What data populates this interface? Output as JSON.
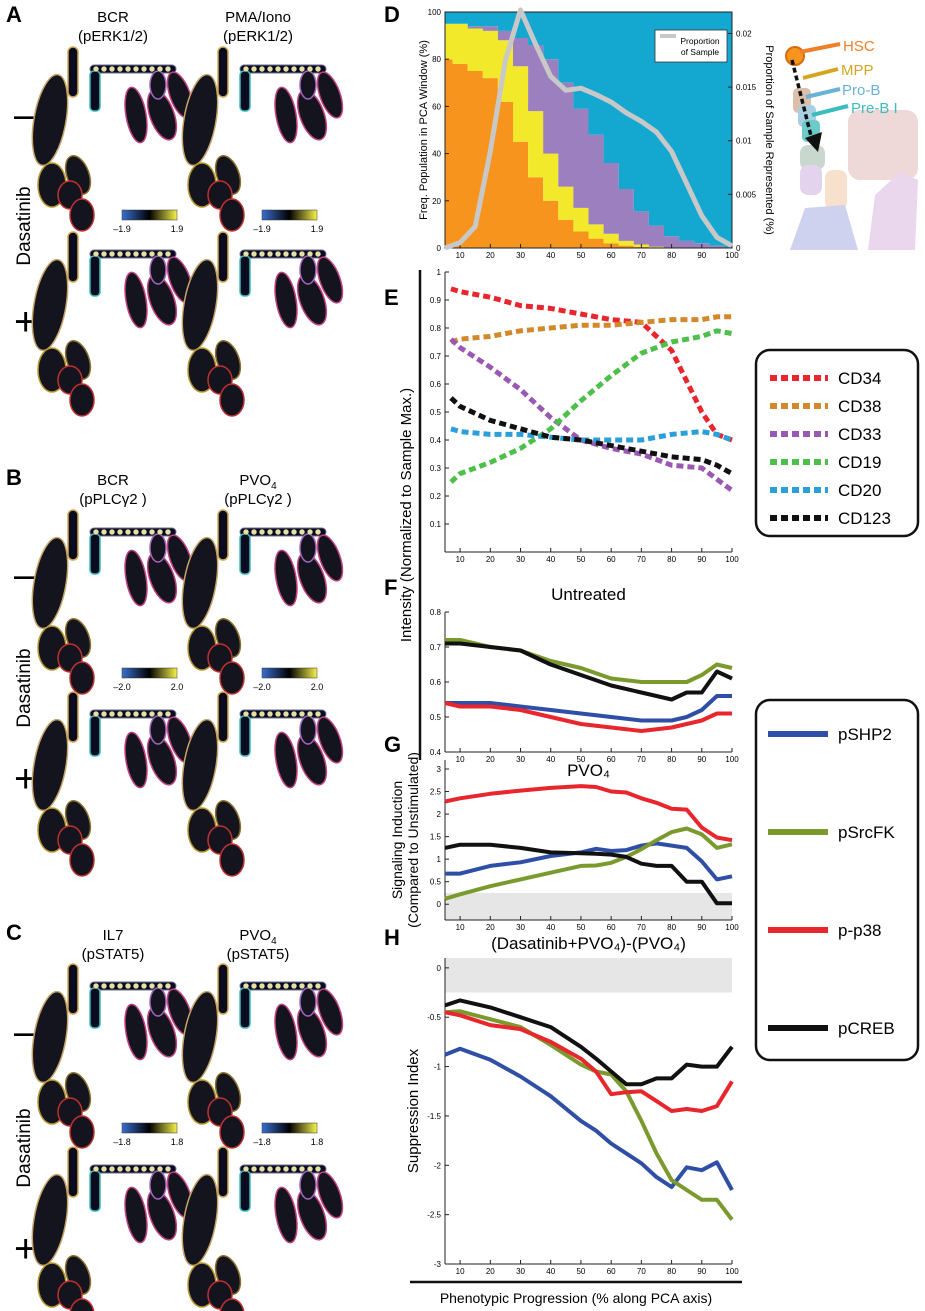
{
  "panel_letters": [
    "A",
    "B",
    "C",
    "D",
    "E",
    "F",
    "G",
    "H"
  ],
  "treatment_label": "Dasatinib",
  "treatment_signs": {
    "minus": "–",
    "plus": "+"
  },
  "panel_A": {
    "columns": [
      {
        "line1": "BCR",
        "line2": "(pERK1/2)"
      },
      {
        "line1": "PMA/Iono",
        "line2": "(pERK1/2)"
      }
    ],
    "scale": {
      "min": "–1.9",
      "max": "1.9"
    }
  },
  "panel_B": {
    "columns": [
      {
        "line1": "BCR",
        "line2": "(pPLCγ2 )"
      },
      {
        "line1": "PVO",
        "sub": "4",
        "line2": "(pPLCγ2 )"
      }
    ],
    "scale": {
      "min": "–2.0",
      "max": "2.0"
    }
  },
  "panel_C": {
    "columns": [
      {
        "line1": "IL7",
        "line2": "(pSTAT5)"
      },
      {
        "line1": "PVO",
        "sub": "4",
        "line2": "(pSTAT5)"
      }
    ],
    "scale": {
      "min": "–1.8",
      "max": "1.8"
    }
  },
  "population_key": {
    "items": [
      {
        "label": "HSC",
        "color": "#f07f2a"
      },
      {
        "label": "MPP",
        "color": "#d4a520"
      },
      {
        "label": "Pro-B",
        "color": "#6ab2d6"
      },
      {
        "label": "Pre-B I",
        "color": "#3cbcbc"
      }
    ]
  },
  "legend_markers": {
    "items": [
      {
        "label": "CD34",
        "color": "#e8262d"
      },
      {
        "label": "CD38",
        "color": "#d2892b"
      },
      {
        "label": "CD33",
        "color": "#9b58b2"
      },
      {
        "label": "CD19",
        "color": "#4fbf4c"
      },
      {
        "label": "CD20",
        "color": "#2b9fd9"
      },
      {
        "label": "CD123",
        "color": "#111111"
      }
    ]
  },
  "legend_signaling": {
    "items": [
      {
        "label": "pSHP2",
        "color": "#2f4fa6"
      },
      {
        "label": "pSrcFK",
        "color": "#7b9a2e"
      },
      {
        "label": "p-p38",
        "color": "#e8262d"
      },
      {
        "label": "pCREB",
        "color": "#111111"
      }
    ]
  },
  "shared_ylabel_EF": "Intensity (Normalized to Sample Max.)",
  "shared_xlabel": "Phenotypic Progression (% along PCA axis)",
  "chart_data": [
    {
      "id": "D",
      "type": "area",
      "ylabel": "Freq. Population in PCA Window (%)",
      "y2label": "Proportion of Sample Represented (%)",
      "legend_text": [
        "Proportion",
        "of Sample"
      ],
      "legend_placement": "top-right",
      "x": [
        5,
        10,
        15,
        20,
        25,
        30,
        35,
        40,
        45,
        50,
        55,
        60,
        65,
        70,
        75,
        80,
        85,
        90,
        95,
        100
      ],
      "xticks": [
        10,
        20,
        30,
        40,
        50,
        60,
        70,
        80,
        90,
        100
      ],
      "yticks": [
        0,
        20,
        40,
        60,
        80,
        100
      ],
      "y2ticks": [
        "0",
        "0.005",
        "0.01",
        "0.015",
        "0.02"
      ],
      "xlim": [
        5,
        100
      ],
      "ylim": [
        0,
        100
      ],
      "y2lim": [
        0,
        0.022
      ],
      "stacked_series": [
        {
          "color": "#f7941d",
          "values": [
            80,
            78,
            75,
            72,
            62,
            45,
            30,
            20,
            12,
            7,
            4,
            2,
            1,
            0.5,
            0,
            0,
            0,
            0,
            0,
            0
          ]
        },
        {
          "color": "#f2e92a",
          "values": [
            15,
            17,
            18,
            20,
            26,
            32,
            28,
            20,
            14,
            10,
            6,
            4,
            2,
            1,
            0.5,
            0,
            0,
            0,
            0,
            0
          ]
        },
        {
          "color": "#9b7fbf",
          "values": [
            0,
            0,
            1,
            2,
            4,
            12,
            28,
            40,
            44,
            42,
            38,
            30,
            22,
            14,
            9,
            5,
            3,
            2,
            1,
            0
          ]
        },
        {
          "color": "#14a7cf",
          "values": [
            5,
            5,
            6,
            6,
            8,
            11,
            14,
            20,
            30,
            41,
            52,
            64,
            75,
            84.5,
            90.5,
            95,
            97,
            98,
            99,
            100
          ]
        }
      ],
      "line": {
        "color": "#c8c8c8",
        "values": [
          0,
          0.0005,
          0.002,
          0.009,
          0.0175,
          0.0222,
          0.019,
          0.016,
          0.0147,
          0.0149,
          0.0143,
          0.0136,
          0.0126,
          0.0118,
          0.0108,
          0.009,
          0.006,
          0.003,
          0.001,
          0.0002
        ]
      }
    },
    {
      "id": "E",
      "type": "line",
      "dashed": true,
      "x": [
        7,
        10,
        20,
        30,
        40,
        50,
        60,
        70,
        80,
        90,
        95,
        100
      ],
      "xticks": [
        10,
        20,
        30,
        40,
        50,
        60,
        70,
        80,
        90,
        100
      ],
      "yticks": [
        0.1,
        0.2,
        0.3,
        0.4,
        0.5,
        0.6,
        0.7,
        0.8,
        0.9,
        1
      ],
      "xlim": [
        5,
        100
      ],
      "ylim": [
        0,
        1
      ],
      "series": [
        {
          "name": "CD34",
          "color": "#e8262d",
          "values": [
            0.94,
            0.93,
            0.91,
            0.88,
            0.87,
            0.85,
            0.83,
            0.82,
            0.72,
            0.5,
            0.42,
            0.4
          ]
        },
        {
          "name": "CD38",
          "color": "#d2892b",
          "values": [
            0.75,
            0.76,
            0.77,
            0.79,
            0.8,
            0.81,
            0.81,
            0.82,
            0.83,
            0.83,
            0.84,
            0.84
          ]
        },
        {
          "name": "CD33",
          "color": "#9b58b2",
          "values": [
            0.76,
            0.73,
            0.66,
            0.58,
            0.48,
            0.4,
            0.37,
            0.35,
            0.31,
            0.3,
            0.26,
            0.22
          ]
        },
        {
          "name": "CD19",
          "color": "#4fbf4c",
          "values": [
            0.25,
            0.28,
            0.32,
            0.37,
            0.44,
            0.54,
            0.63,
            0.71,
            0.75,
            0.77,
            0.79,
            0.78
          ]
        },
        {
          "name": "CD20",
          "color": "#2b9fd9",
          "values": [
            0.44,
            0.43,
            0.42,
            0.42,
            0.41,
            0.4,
            0.4,
            0.4,
            0.42,
            0.43,
            0.42,
            0.4
          ]
        },
        {
          "name": "CD123",
          "color": "#111111",
          "values": [
            0.55,
            0.52,
            0.47,
            0.44,
            0.41,
            0.4,
            0.38,
            0.36,
            0.34,
            0.33,
            0.31,
            0.28
          ]
        }
      ]
    },
    {
      "id": "F",
      "type": "line",
      "title": "Untreated",
      "x": [
        5,
        10,
        20,
        30,
        40,
        50,
        60,
        70,
        80,
        85,
        90,
        95,
        100
      ],
      "xticks": [
        10,
        20,
        30,
        40,
        50,
        60,
        70,
        80,
        90,
        100
      ],
      "yticks": [
        0.4,
        0.5,
        0.6,
        0.7,
        0.8
      ],
      "xlim": [
        5,
        100
      ],
      "ylim": [
        0.4,
        0.8
      ],
      "series": [
        {
          "name": "pSHP2",
          "color": "#2f4fa6",
          "values": [
            0.54,
            0.54,
            0.54,
            0.53,
            0.52,
            0.51,
            0.5,
            0.49,
            0.49,
            0.5,
            0.52,
            0.56,
            0.56
          ]
        },
        {
          "name": "pSrcFK",
          "color": "#7b9a2e",
          "values": [
            0.72,
            0.72,
            0.7,
            0.69,
            0.66,
            0.64,
            0.61,
            0.6,
            0.6,
            0.6,
            0.62,
            0.65,
            0.64
          ]
        },
        {
          "name": "p-p38",
          "color": "#e8262d",
          "values": [
            0.54,
            0.53,
            0.53,
            0.52,
            0.5,
            0.48,
            0.47,
            0.46,
            0.47,
            0.48,
            0.49,
            0.51,
            0.51
          ]
        },
        {
          "name": "pCREB",
          "color": "#111111",
          "values": [
            0.71,
            0.71,
            0.7,
            0.69,
            0.65,
            0.62,
            0.59,
            0.57,
            0.55,
            0.57,
            0.57,
            0.63,
            0.61
          ]
        }
      ]
    },
    {
      "id": "G",
      "type": "line",
      "title": "PVO₄",
      "ylabel_lines": [
        "Signaling Induction",
        "(Compared to Unstimulated)"
      ],
      "x": [
        5,
        10,
        20,
        30,
        40,
        50,
        55,
        60,
        65,
        70,
        75,
        80,
        85,
        90,
        95,
        100
      ],
      "xticks": [
        10,
        20,
        30,
        40,
        50,
        60,
        70,
        80,
        90,
        100
      ],
      "yticks": [
        0,
        0.5,
        1,
        1.5,
        2,
        2.5,
        3
      ],
      "xlim": [
        5,
        100
      ],
      "ylim": [
        -0.35,
        3.2
      ],
      "shaded_band": [
        -0.35,
        0.25
      ],
      "series": [
        {
          "name": "pSHP2",
          "color": "#2f4fa6",
          "values": [
            0.68,
            0.68,
            0.85,
            0.93,
            1.07,
            1.15,
            1.23,
            1.18,
            1.2,
            1.3,
            1.35,
            1.3,
            1.25,
            0.95,
            0.55,
            0.62
          ]
        },
        {
          "name": "pSrcFK",
          "color": "#7b9a2e",
          "values": [
            0.12,
            0.22,
            0.4,
            0.55,
            0.7,
            0.85,
            0.86,
            0.92,
            1.05,
            1.22,
            1.42,
            1.6,
            1.68,
            1.55,
            1.25,
            1.33
          ]
        },
        {
          "name": "p-p38",
          "color": "#e8262d",
          "values": [
            2.28,
            2.35,
            2.45,
            2.52,
            2.58,
            2.62,
            2.6,
            2.5,
            2.48,
            2.35,
            2.25,
            2.12,
            2.1,
            1.7,
            1.48,
            1.42
          ]
        },
        {
          "name": "pCREB",
          "color": "#111111",
          "values": [
            1.25,
            1.32,
            1.32,
            1.25,
            1.15,
            1.13,
            1.12,
            1.1,
            1.05,
            0.9,
            0.85,
            0.85,
            0.5,
            0.5,
            0.02,
            0.02
          ]
        }
      ]
    },
    {
      "id": "H",
      "type": "line",
      "title": "(Dasatinib+PVO₄)-(PVO₄)",
      "ylabel": "Suppression Index",
      "x": [
        5,
        10,
        20,
        30,
        40,
        50,
        55,
        60,
        65,
        70,
        75,
        80,
        85,
        90,
        95,
        100
      ],
      "xticks": [
        10,
        20,
        30,
        40,
        50,
        60,
        70,
        80,
        90,
        100
      ],
      "yticks": [
        0,
        -0.5,
        -1,
        -1.5,
        -2,
        -2.5,
        -3
      ],
      "xlim": [
        5,
        100
      ],
      "ylim": [
        -3,
        0.1
      ],
      "shaded_band": [
        -0.25,
        0.1
      ],
      "series": [
        {
          "name": "pSHP2",
          "color": "#2f4fa6",
          "values": [
            -0.88,
            -0.82,
            -0.93,
            -1.1,
            -1.3,
            -1.55,
            -1.65,
            -1.78,
            -1.88,
            -1.98,
            -2.12,
            -2.22,
            -2.02,
            -2.05,
            -1.97,
            -2.25
          ]
        },
        {
          "name": "pSrcFK",
          "color": "#7b9a2e",
          "values": [
            -0.45,
            -0.44,
            -0.52,
            -0.6,
            -0.78,
            -0.98,
            -1.05,
            -1.08,
            -1.25,
            -1.55,
            -1.88,
            -2.15,
            -2.25,
            -2.35,
            -2.35,
            -2.55
          ]
        },
        {
          "name": "p-p38",
          "color": "#e8262d",
          "values": [
            -0.45,
            -0.48,
            -0.58,
            -0.62,
            -0.75,
            -0.92,
            -1.05,
            -1.28,
            -1.26,
            -1.25,
            -1.35,
            -1.45,
            -1.43,
            -1.45,
            -1.4,
            -1.15
          ]
        },
        {
          "name": "pCREB",
          "color": "#111111",
          "values": [
            -0.38,
            -0.33,
            -0.4,
            -0.5,
            -0.6,
            -0.8,
            -0.92,
            -1.05,
            -1.18,
            -1.18,
            -1.12,
            -1.12,
            -0.98,
            -1.0,
            -1.0,
            -0.8
          ]
        }
      ]
    }
  ]
}
